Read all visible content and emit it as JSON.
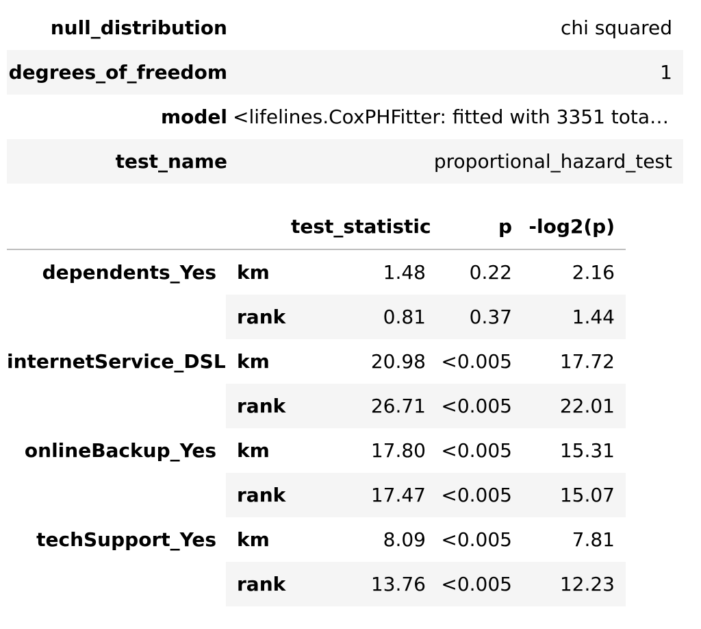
{
  "summary": {
    "rows": [
      {
        "key": "null_distribution",
        "value": "chi squared"
      },
      {
        "key": "degrees_of_freedom",
        "value": "1"
      },
      {
        "key": "model",
        "value": "<lifelines.CoxPHFitter: fitted with 3351 total..."
      },
      {
        "key": "test_name",
        "value": "proportional_hazard_test"
      }
    ]
  },
  "results": {
    "headers": {
      "test_statistic": "test_statistic",
      "p": "p",
      "neg_log2_p": "-log2(p)"
    },
    "rows": [
      {
        "variable": "dependents_Yes",
        "method": "km",
        "test_statistic": "1.48",
        "p": "0.22",
        "neg_log2_p": "2.16"
      },
      {
        "variable": "",
        "method": "rank",
        "test_statistic": "0.81",
        "p": "0.37",
        "neg_log2_p": "1.44"
      },
      {
        "variable": "internetService_DSL",
        "method": "km",
        "test_statistic": "20.98",
        "p": "<0.005",
        "neg_log2_p": "17.72"
      },
      {
        "variable": "",
        "method": "rank",
        "test_statistic": "26.71",
        "p": "<0.005",
        "neg_log2_p": "22.01"
      },
      {
        "variable": "onlineBackup_Yes",
        "method": "km",
        "test_statistic": "17.80",
        "p": "<0.005",
        "neg_log2_p": "15.31"
      },
      {
        "variable": "",
        "method": "rank",
        "test_statistic": "17.47",
        "p": "<0.005",
        "neg_log2_p": "15.07"
      },
      {
        "variable": "techSupport_Yes",
        "method": "km",
        "test_statistic": "8.09",
        "p": "<0.005",
        "neg_log2_p": "7.81"
      },
      {
        "variable": "",
        "method": "rank",
        "test_statistic": "13.76",
        "p": "<0.005",
        "neg_log2_p": "12.23"
      }
    ]
  }
}
